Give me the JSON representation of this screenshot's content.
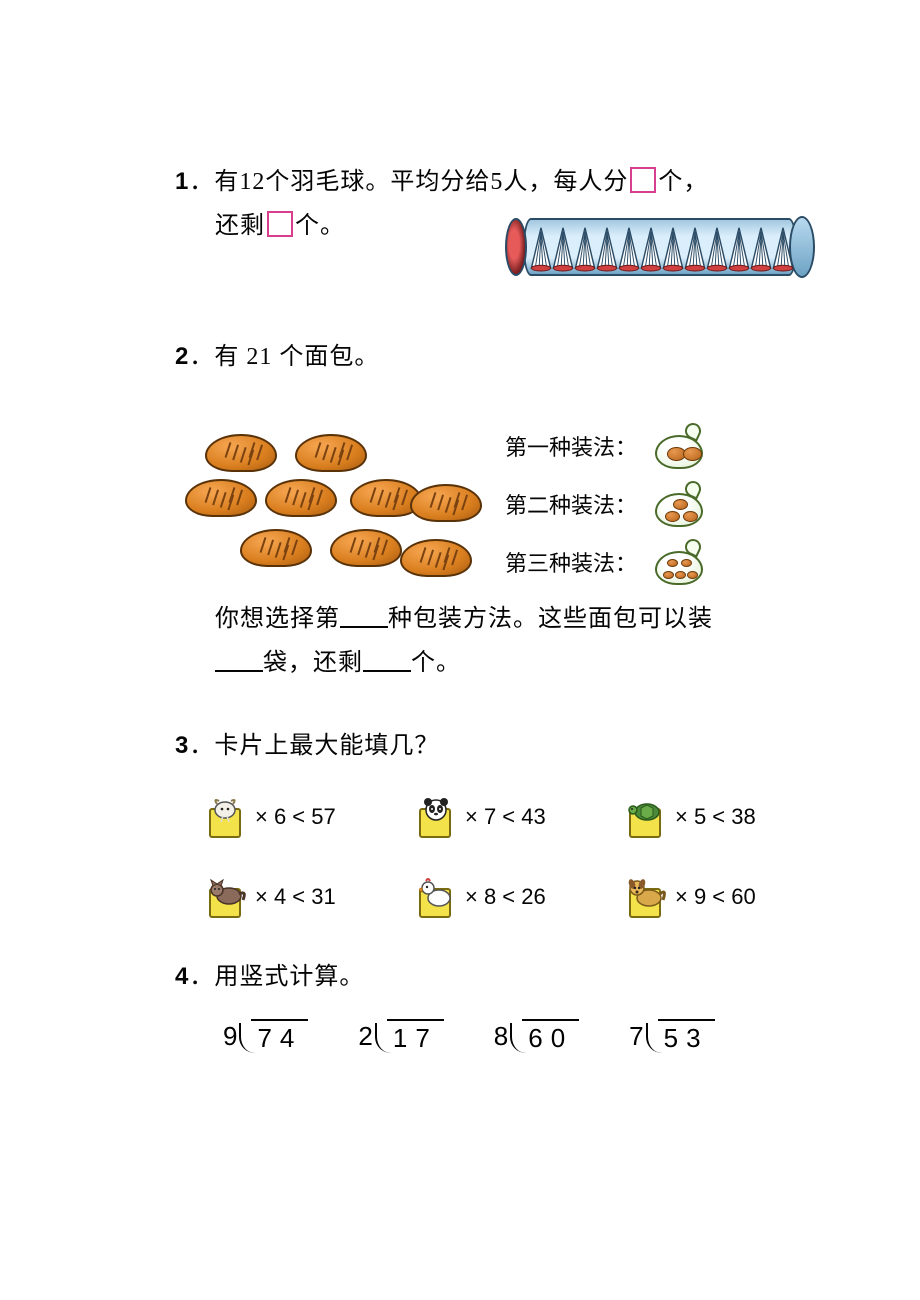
{
  "colors": {
    "text": "#050505",
    "box_border": "#d83e8f",
    "tube_light": "#dbeefb",
    "tube_dark": "#6ea3c4",
    "bread_fill": "#d97e1e",
    "card_fill": "#f4e24b"
  },
  "q1": {
    "number": "1",
    "text_a": "．有12个羽毛球。平均分给5人，每人分",
    "text_b": "个，",
    "text_c": "还剩",
    "text_d": "个。",
    "shuttlecock_count": 12
  },
  "q2": {
    "number": "2",
    "text_a": "．有 21 个面包。",
    "pack_labels": [
      "第一种装法：",
      "第二种装法：",
      "第三种装法："
    ],
    "bag_counts": [
      2,
      3,
      5
    ],
    "text_b": "你想选择第",
    "text_c": "种包装方法。这些面包可以装",
    "text_d": "袋，还剩",
    "text_e": "个。"
  },
  "q3": {
    "number": "3",
    "title": "．卡片上最大能填几？",
    "items": [
      {
        "animal": "goat",
        "expr": "× 6 < 57"
      },
      {
        "animal": "panda",
        "expr": "× 7 < 43"
      },
      {
        "animal": "turtle",
        "expr": "× 5 < 38"
      },
      {
        "animal": "cat",
        "expr": "× 4 < 31"
      },
      {
        "animal": "duck",
        "expr": "× 8 < 26"
      },
      {
        "animal": "dog",
        "expr": "× 9 < 60"
      }
    ]
  },
  "q4": {
    "number": "4",
    "title": "．用竖式计算。",
    "problems": [
      {
        "divisor": "9",
        "dividend": "74"
      },
      {
        "divisor": "2",
        "dividend": "17"
      },
      {
        "divisor": "8",
        "dividend": "60"
      },
      {
        "divisor": "7",
        "dividend": "53"
      }
    ]
  }
}
